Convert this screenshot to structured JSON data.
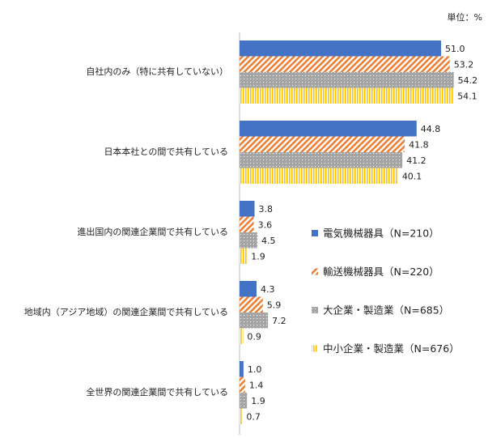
{
  "chart_data": {
    "type": "hbar",
    "unit_label": "単位：%",
    "categories": [
      "自社内のみ（特に共有していない）",
      "日本本社との間で共有している",
      "進出国内の関連企業間で共有している",
      "地域内（アジア地域）の関連企業間で共有している",
      "全世界の関連企業間で共有している"
    ],
    "series": [
      {
        "name": "電気機械器具（N=210）",
        "color": "#4472c4",
        "pattern": "solid",
        "values": [
          51.0,
          44.8,
          3.8,
          4.3,
          1.0
        ],
        "value_labels": [
          "51.0",
          "44.8",
          "3.8",
          "4.3",
          "1.0"
        ]
      },
      {
        "name": "輸送機械器具（N=220）",
        "color": "#ed7d31",
        "pattern": "diagonal",
        "values": [
          53.2,
          41.8,
          3.6,
          5.9,
          1.4
        ],
        "value_labels": [
          "53.2",
          "41.8",
          "3.6",
          "5.9",
          "1.4"
        ]
      },
      {
        "name": "大企業・製造業（N=685）",
        "color": "#a5a5a5",
        "pattern": "dots",
        "values": [
          54.2,
          41.2,
          4.5,
          7.2,
          1.9
        ],
        "value_labels": [
          "54.2",
          "41.2",
          "4.5",
          "7.2",
          "1.9"
        ]
      },
      {
        "name": "中小企業・製造業（N=676）",
        "color": "#ffc000",
        "pattern": "vertical",
        "values": [
          54.1,
          40.1,
          1.9,
          0.9,
          0.7
        ],
        "value_labels": [
          "54.1",
          "40.1",
          "1.9",
          "0.9",
          "0.7"
        ]
      }
    ],
    "xlim": [
      0,
      60
    ]
  }
}
